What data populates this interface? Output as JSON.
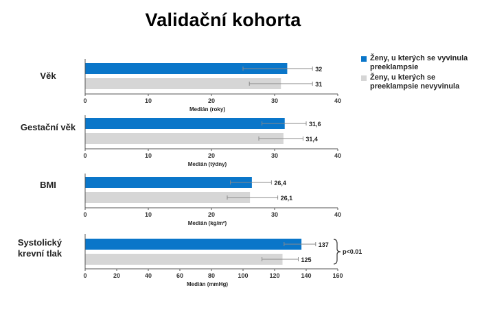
{
  "title": "Validační kohorta",
  "colors": {
    "series1": "#0a76c9",
    "series2": "#d6d6d6",
    "error": "#8a8a8a",
    "axis": "#555555"
  },
  "legend": [
    {
      "label": "Ženy, u kterých se vyvinula preeklampsie",
      "color": "#0a76c9"
    },
    {
      "label": "Ženy, u kterých se preeklampsie nevyvinula",
      "color": "#d6d6d6"
    }
  ],
  "annotation": "p<0.01",
  "chart_data": [
    {
      "type": "bar",
      "orientation": "horizontal",
      "category": "Věk",
      "xlabel": "Medián (roky)",
      "xlim": [
        0,
        40
      ],
      "ticks": [
        0,
        10,
        20,
        30,
        40
      ],
      "series": [
        {
          "name": "Ženy, u kterých se vyvinula preeklampsie",
          "value": 32,
          "label": "32",
          "err": [
            25,
            36
          ]
        },
        {
          "name": "Ženy, u kterých se preeklampsie nevyvinula",
          "value": 31,
          "label": "31",
          "err": [
            26,
            36
          ]
        }
      ]
    },
    {
      "type": "bar",
      "orientation": "horizontal",
      "category": "Gestační věk",
      "xlabel": "Medián (týdny)",
      "xlim": [
        0,
        40
      ],
      "ticks": [
        0,
        10,
        20,
        30,
        40
      ],
      "series": [
        {
          "name": "Ženy, u kterých se vyvinula preeklampsie",
          "value": 31.6,
          "label": "31,6",
          "err": [
            28,
            35
          ]
        },
        {
          "name": "Ženy, u kterých se preeklampsie nevyvinula",
          "value": 31.4,
          "label": "31,4",
          "err": [
            27.5,
            34.5
          ]
        }
      ]
    },
    {
      "type": "bar",
      "orientation": "horizontal",
      "category": "BMI",
      "xlabel": "Medián (kg/m²)",
      "xlim": [
        0,
        40
      ],
      "ticks": [
        0,
        10,
        20,
        30,
        40
      ],
      "series": [
        {
          "name": "Ženy, u kterých se vyvinula preeklampsie",
          "value": 26.4,
          "label": "26,4",
          "err": [
            23,
            29.5
          ]
        },
        {
          "name": "Ženy, u kterých se preeklampsie nevyvinula",
          "value": 26.1,
          "label": "26,1",
          "err": [
            22.5,
            30.5
          ]
        }
      ]
    },
    {
      "type": "bar",
      "orientation": "horizontal",
      "category": "Systolický krevní tlak",
      "xlabel": "Medián (mmHg)",
      "xlim": [
        0,
        160
      ],
      "ticks": [
        0,
        20,
        40,
        60,
        80,
        100,
        120,
        140,
        160
      ],
      "series": [
        {
          "name": "Ženy, u kterých se vyvinula preeklampsie",
          "value": 137,
          "label": "137",
          "err": [
            126,
            146
          ]
        },
        {
          "name": "Ženy, u kterých se preeklampsie nevyvinula",
          "value": 125,
          "label": "125",
          "err": [
            112,
            135
          ]
        }
      ]
    }
  ]
}
